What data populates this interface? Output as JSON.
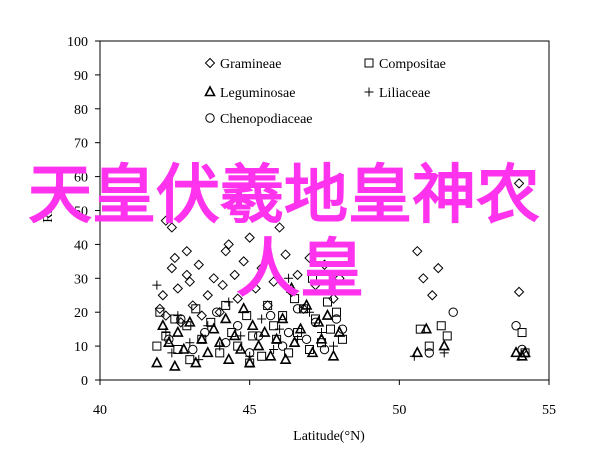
{
  "chart_data": {
    "type": "scatter",
    "title": "",
    "xlabel": "Latitude(°N)",
    "ylabel": "Ra",
    "xlim": [
      40,
      55
    ],
    "ylim": [
      0,
      100
    ],
    "xticks": [
      "40",
      "45",
      "50",
      "55"
    ],
    "yticks": [
      "0",
      "10",
      "20",
      "30",
      "40",
      "50",
      "60",
      "70",
      "80",
      "90",
      "100"
    ],
    "grid": false,
    "legend_position": "top-left",
    "legend": [
      "Gramineae",
      "Compositae",
      "Leguminosae",
      "Liliaceae",
      "Chenopodiaceae"
    ],
    "series": [
      {
        "name": "Gramineae",
        "marker": "diamond",
        "points": [
          [
            42.0,
            21
          ],
          [
            42.1,
            25
          ],
          [
            42.2,
            19
          ],
          [
            42.4,
            33
          ],
          [
            42.5,
            36
          ],
          [
            42.6,
            27
          ],
          [
            42.7,
            17
          ],
          [
            42.9,
            31
          ],
          [
            42.9,
            38
          ],
          [
            43.0,
            29
          ],
          [
            43.1,
            22
          ],
          [
            43.3,
            34
          ],
          [
            43.4,
            19
          ],
          [
            43.6,
            25
          ],
          [
            43.8,
            30
          ],
          [
            44.0,
            20
          ],
          [
            44.1,
            28
          ],
          [
            44.2,
            38
          ],
          [
            44.3,
            40
          ],
          [
            44.5,
            31
          ],
          [
            44.6,
            24
          ],
          [
            44.8,
            35
          ],
          [
            45.0,
            42
          ],
          [
            45.2,
            27
          ],
          [
            45.4,
            33
          ],
          [
            45.6,
            22
          ],
          [
            45.8,
            29
          ],
          [
            46.0,
            45
          ],
          [
            46.2,
            37
          ],
          [
            46.4,
            26
          ],
          [
            46.6,
            31
          ],
          [
            46.8,
            21
          ],
          [
            47.0,
            36
          ],
          [
            47.2,
            28
          ],
          [
            47.5,
            34
          ],
          [
            47.8,
            24
          ],
          [
            48.0,
            30
          ],
          [
            42.2,
            47
          ],
          [
            42.4,
            45
          ],
          [
            50.6,
            38
          ],
          [
            50.8,
            30
          ],
          [
            51.1,
            25
          ],
          [
            51.3,
            33
          ],
          [
            54.0,
            26
          ],
          [
            54.0,
            58
          ]
        ]
      },
      {
        "name": "Compositae",
        "marker": "square",
        "points": [
          [
            41.9,
            10
          ],
          [
            42.0,
            20
          ],
          [
            42.2,
            13
          ],
          [
            42.5,
            18
          ],
          [
            42.6,
            9
          ],
          [
            42.9,
            16
          ],
          [
            43.0,
            6
          ],
          [
            43.2,
            21
          ],
          [
            43.4,
            12
          ],
          [
            43.7,
            17
          ],
          [
            44.0,
            8
          ],
          [
            44.2,
            22
          ],
          [
            44.4,
            14
          ],
          [
            44.6,
            10
          ],
          [
            44.9,
            19
          ],
          [
            45.0,
            5
          ],
          [
            45.1,
            13
          ],
          [
            45.4,
            7
          ],
          [
            45.6,
            22
          ],
          [
            45.8,
            16
          ],
          [
            45.9,
            12
          ],
          [
            46.1,
            19
          ],
          [
            46.3,
            8
          ],
          [
            46.5,
            24
          ],
          [
            46.6,
            14
          ],
          [
            46.8,
            21
          ],
          [
            47.0,
            9
          ],
          [
            47.1,
            30
          ],
          [
            47.2,
            18
          ],
          [
            47.4,
            11
          ],
          [
            47.6,
            23
          ],
          [
            47.7,
            15
          ],
          [
            47.9,
            20
          ],
          [
            48.1,
            12
          ],
          [
            50.7,
            15
          ],
          [
            51.0,
            10
          ],
          [
            51.4,
            16
          ],
          [
            51.6,
            13
          ],
          [
            54.1,
            14
          ],
          [
            54.2,
            8
          ]
        ]
      },
      {
        "name": "Leguminosae",
        "marker": "triangle",
        "points": [
          [
            41.9,
            5
          ],
          [
            42.1,
            16
          ],
          [
            42.3,
            11
          ],
          [
            42.5,
            4
          ],
          [
            42.6,
            14
          ],
          [
            42.8,
            9
          ],
          [
            43.0,
            17
          ],
          [
            43.2,
            5
          ],
          [
            43.4,
            12
          ],
          [
            43.6,
            8
          ],
          [
            43.8,
            15
          ],
          [
            44.0,
            11
          ],
          [
            44.2,
            18
          ],
          [
            44.3,
            6
          ],
          [
            44.5,
            13
          ],
          [
            44.7,
            9
          ],
          [
            44.8,
            21
          ],
          [
            45.0,
            5
          ],
          [
            45.1,
            16
          ],
          [
            45.3,
            10
          ],
          [
            45.5,
            14
          ],
          [
            45.7,
            7
          ],
          [
            45.9,
            12
          ],
          [
            46.1,
            18
          ],
          [
            46.2,
            6
          ],
          [
            46.4,
            27
          ],
          [
            46.5,
            11
          ],
          [
            46.7,
            15
          ],
          [
            46.9,
            22
          ],
          [
            47.1,
            8
          ],
          [
            47.3,
            17
          ],
          [
            47.4,
            12
          ],
          [
            47.6,
            19
          ],
          [
            47.8,
            7
          ],
          [
            48.0,
            14
          ],
          [
            50.6,
            8
          ],
          [
            50.9,
            15
          ],
          [
            51.5,
            10
          ],
          [
            53.9,
            8
          ],
          [
            54.1,
            7
          ],
          [
            54.2,
            8
          ]
        ]
      },
      {
        "name": "Liliaceae",
        "marker": "plus",
        "points": [
          [
            41.9,
            28
          ],
          [
            42.2,
            14
          ],
          [
            42.4,
            8
          ],
          [
            42.6,
            19
          ],
          [
            43.0,
            11
          ],
          [
            43.3,
            6
          ],
          [
            43.6,
            16
          ],
          [
            44.0,
            10
          ],
          [
            44.3,
            23
          ],
          [
            44.7,
            13
          ],
          [
            45.0,
            7
          ],
          [
            45.4,
            18
          ],
          [
            45.8,
            9
          ],
          [
            46.0,
            15
          ],
          [
            46.3,
            30
          ],
          [
            46.6,
            12
          ],
          [
            47.0,
            20
          ],
          [
            47.4,
            14
          ],
          [
            47.8,
            10
          ],
          [
            50.5,
            7
          ],
          [
            51.5,
            8
          ],
          [
            54.0,
            7
          ]
        ]
      },
      {
        "name": "Chenopodiaceae",
        "marker": "circle",
        "points": [
          [
            42.3,
            12
          ],
          [
            42.7,
            18
          ],
          [
            43.1,
            9
          ],
          [
            43.5,
            14
          ],
          [
            43.9,
            20
          ],
          [
            44.2,
            11
          ],
          [
            44.6,
            16
          ],
          [
            45.0,
            8
          ],
          [
            45.3,
            13
          ],
          [
            45.7,
            19
          ],
          [
            46.1,
            10
          ],
          [
            46.3,
            14
          ],
          [
            46.6,
            21
          ],
          [
            46.9,
            12
          ],
          [
            47.2,
            17
          ],
          [
            47.5,
            9
          ],
          [
            47.9,
            18
          ],
          [
            48.1,
            15
          ],
          [
            51.0,
            8
          ],
          [
            51.8,
            20
          ],
          [
            53.9,
            16
          ],
          [
            54.1,
            9
          ]
        ]
      }
    ]
  },
  "watermark": {
    "line1": "天皇伏羲地皇神农",
    "line2": "人皇",
    "color": "#ff33ee"
  }
}
